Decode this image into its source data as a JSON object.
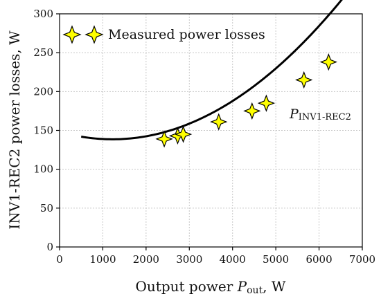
{
  "chart_data": {
    "type": "scatter",
    "xlabel": "Output power ",
    "xlabel_symbol": "P",
    "xlabel_subscript": "out",
    "xlabel_unit": ", W",
    "ylabel": "INV1-REC2 power losses, W",
    "xlim": [
      0,
      7000
    ],
    "ylim": [
      0,
      300
    ],
    "x_ticks": [
      0,
      1000,
      2000,
      3000,
      4000,
      5000,
      6000,
      7000
    ],
    "y_ticks": [
      0,
      50,
      100,
      150,
      200,
      250,
      300
    ],
    "grid": true,
    "legend_position": "top-left",
    "series": [
      {
        "name": "Measured power losses",
        "marker": "four-point-star",
        "color": "#ffff00",
        "points": [
          {
            "x": 2420,
            "y": 139
          },
          {
            "x": 2730,
            "y": 143
          },
          {
            "x": 2860,
            "y": 145
          },
          {
            "x": 3680,
            "y": 161
          },
          {
            "x": 4450,
            "y": 175
          },
          {
            "x": 4780,
            "y": 185
          },
          {
            "x": 5650,
            "y": 215
          },
          {
            "x": 6220,
            "y": 238
          }
        ]
      }
    ],
    "fit_curve": {
      "label_symbol": "P",
      "label_subscript": "INV1-REC2",
      "x_range": [
        500,
        7000
      ],
      "coefficients": [
        148.2,
        -0.0157,
        6.4e-06
      ]
    }
  }
}
